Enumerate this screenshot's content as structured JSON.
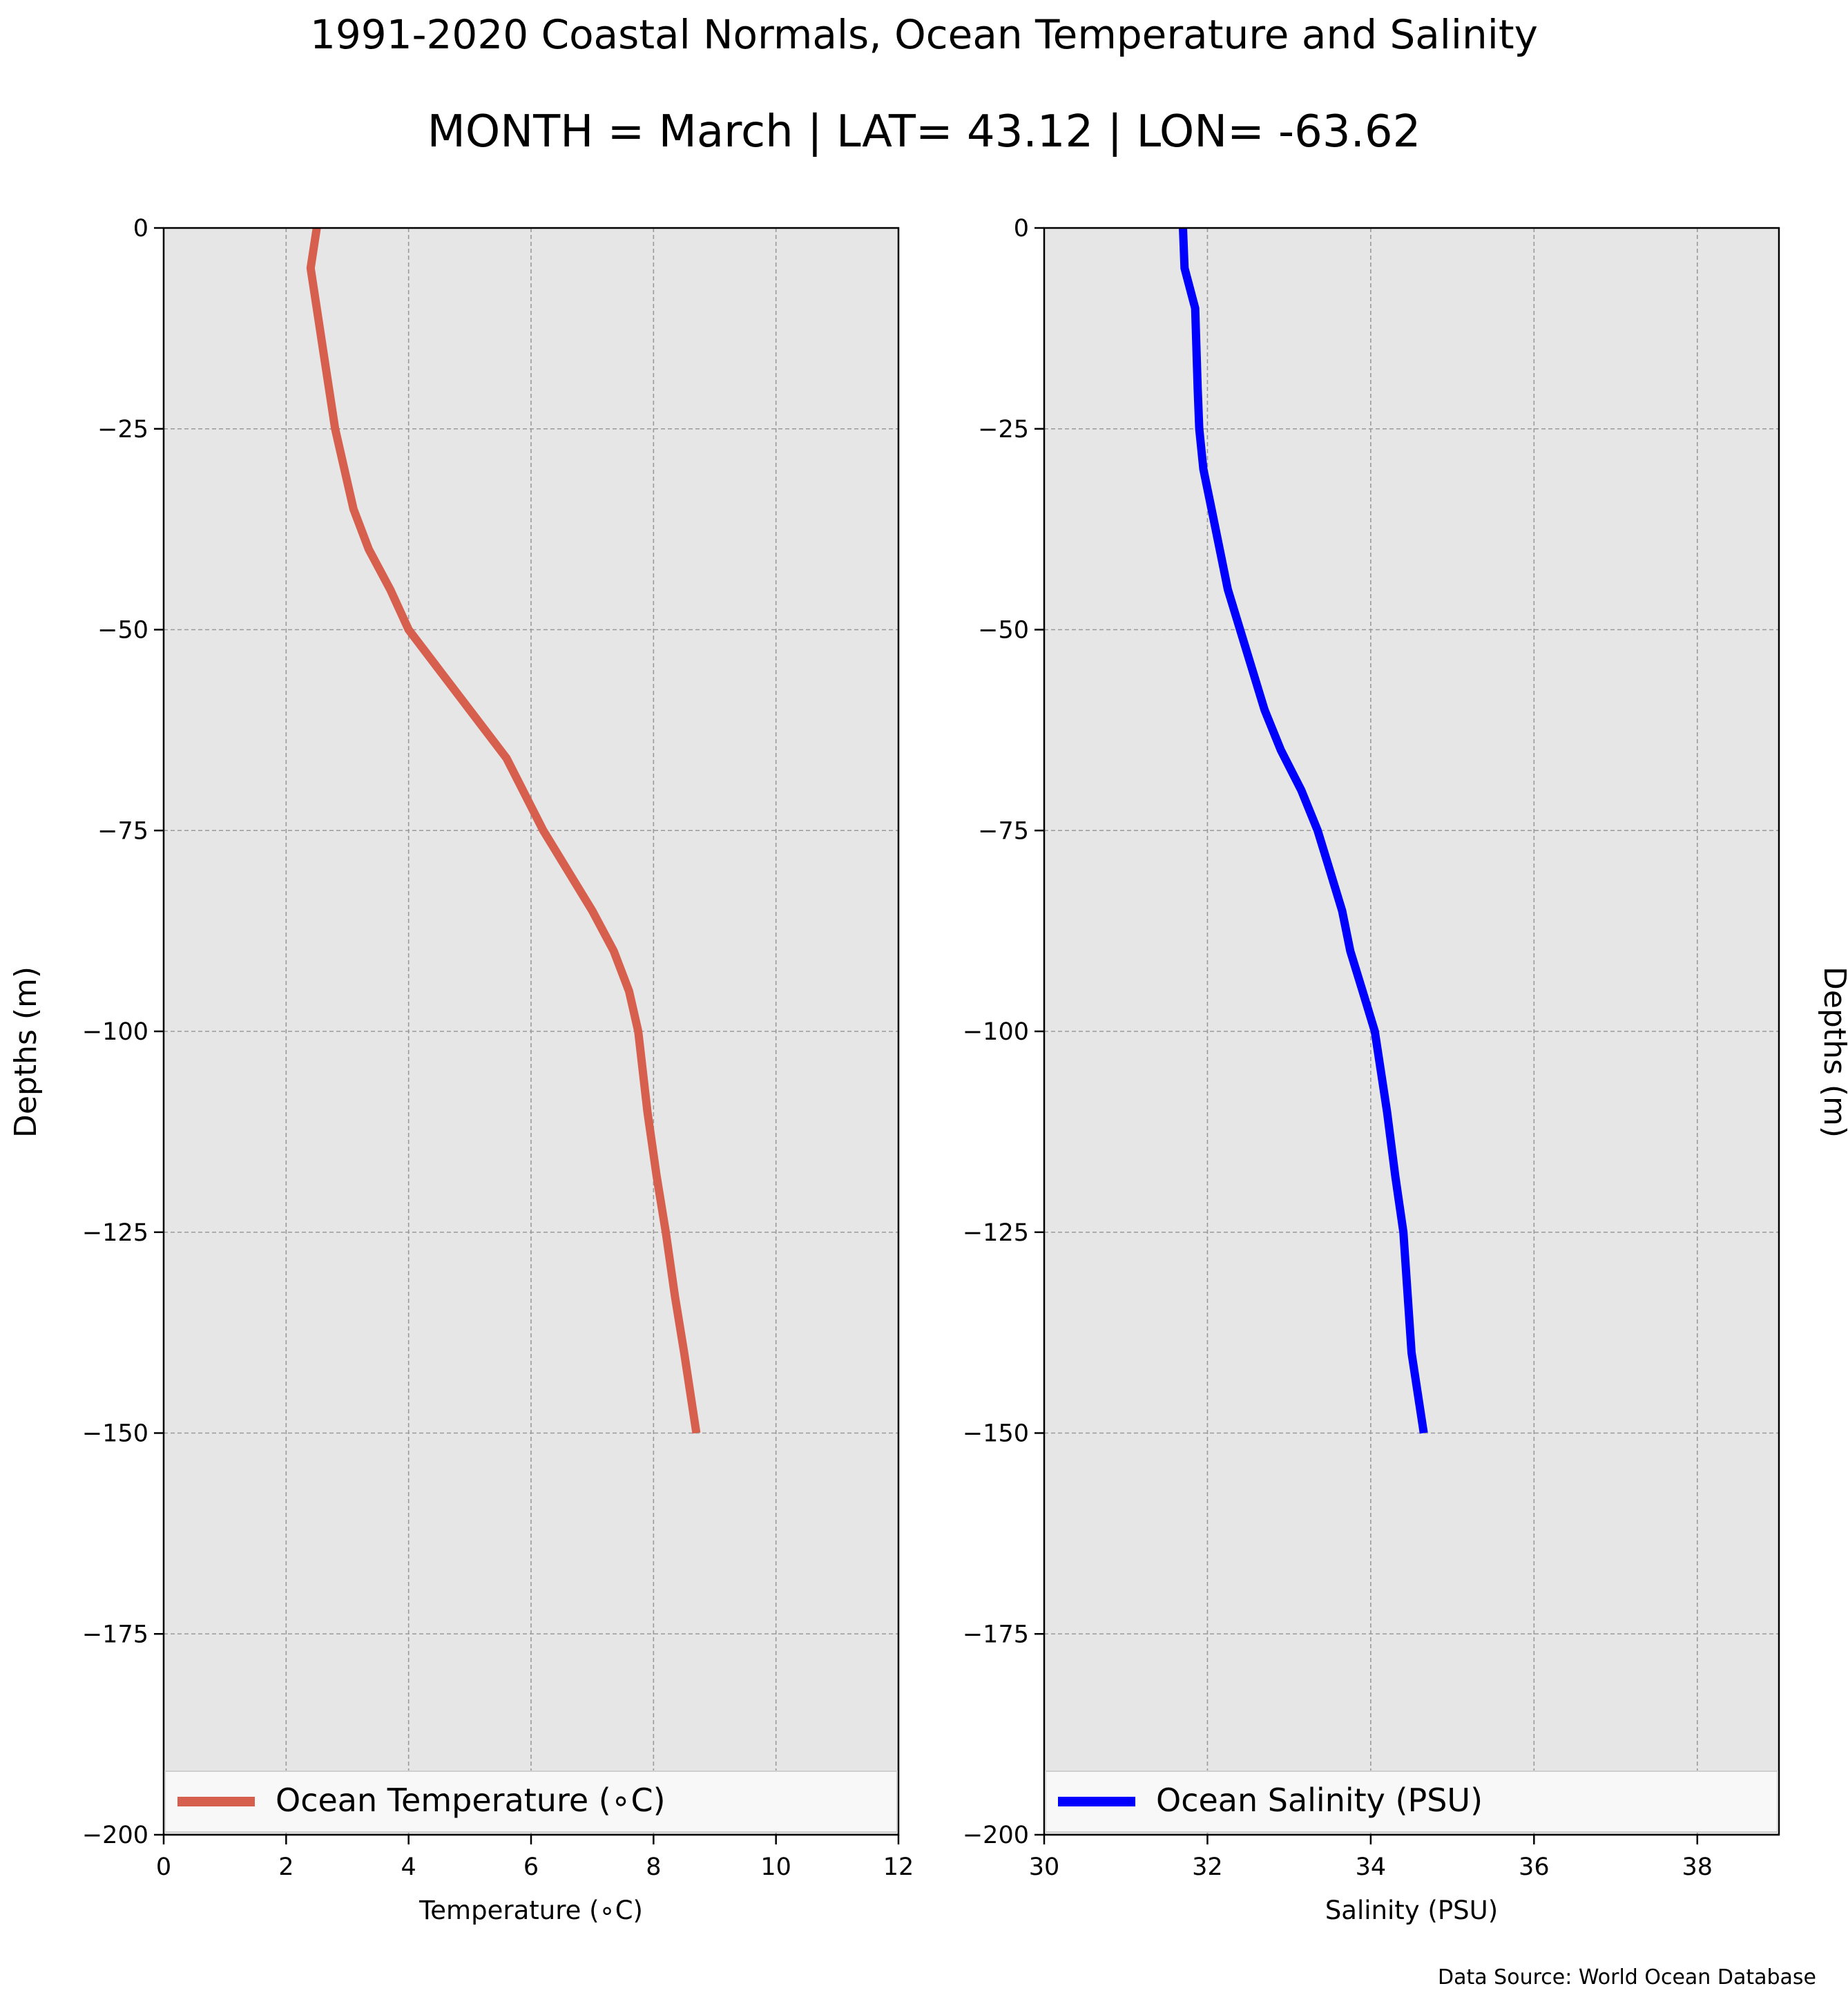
{
  "figure": {
    "title": "1991-2020 Coastal Normals, Ocean Temperature and Salinity",
    "subtitle": "MONTH = March | LAT= 43.12 | LON= -63.62",
    "source": "Data Source: World Ocean Database"
  },
  "colors": {
    "panel_bg": "#e6e6e6",
    "grid": "#9a9a9a",
    "temperature": "#d65f4e",
    "salinity": "#0000ff"
  },
  "chart_data": [
    {
      "type": "line",
      "xlabel": "Temperature (∘C)",
      "ylabel": "Depths (m)",
      "xlim": [
        0,
        12
      ],
      "ylim": [
        -200,
        0
      ],
      "xticks": [
        0,
        2,
        4,
        6,
        8,
        10,
        12
      ],
      "xtick_labels": [
        "0",
        "2",
        "4",
        "6",
        "8",
        "10",
        "12"
      ],
      "yticks": [
        0,
        -25,
        -50,
        -75,
        -100,
        -125,
        -150,
        -175,
        -200
      ],
      "ytick_labels": [
        "0",
        "−25",
        "−50",
        "−75",
        "−100",
        "−125",
        "−150",
        "−175",
        "−200"
      ],
      "grid": true,
      "legend_position": "lower-center",
      "series": [
        {
          "name": "Ocean Temperature (∘C)",
          "color": "#d65f4e",
          "x": [
            2.5,
            2.4,
            2.5,
            2.6,
            2.7,
            2.8,
            3.1,
            3.35,
            3.7,
            4.0,
            4.5,
            5.0,
            5.6,
            6.2,
            6.6,
            7.0,
            7.35,
            7.6,
            7.75,
            7.9,
            8.05,
            8.2,
            8.35,
            8.5,
            8.7
          ],
          "y": [
            0,
            -5,
            -10,
            -15,
            -20,
            -25,
            -35,
            -40,
            -45,
            -50,
            -55,
            -60,
            -66,
            -75,
            -80,
            -85,
            -90,
            -95,
            -100,
            -110,
            -118,
            -125,
            -133,
            -140,
            -150
          ]
        }
      ]
    },
    {
      "type": "line",
      "xlabel": "Salinity (PSU)",
      "ylabel": "Depths (m)",
      "xlim": [
        30,
        39
      ],
      "ylim": [
        -200,
        0
      ],
      "xticks": [
        30,
        32,
        34,
        36,
        38
      ],
      "xtick_labels": [
        "30",
        "32",
        "34",
        "36",
        "38"
      ],
      "yticks": [
        0,
        -25,
        -50,
        -75,
        -100,
        -125,
        -150,
        -175,
        -200
      ],
      "ytick_labels": [
        "0",
        "−25",
        "−50",
        "−75",
        "−100",
        "−125",
        "−150",
        "−175",
        "−200"
      ],
      "grid": true,
      "legend_position": "lower-center",
      "series": [
        {
          "name": "Ocean Salinity (PSU)",
          "color": "#0000ff",
          "x": [
            31.7,
            31.72,
            31.85,
            31.88,
            31.9,
            31.95,
            32.05,
            32.15,
            32.25,
            32.4,
            32.55,
            32.7,
            32.9,
            33.15,
            33.35,
            33.5,
            33.65,
            33.75,
            33.9,
            34.05,
            34.2,
            34.3,
            34.4,
            34.5,
            34.65
          ],
          "y": [
            0,
            -5,
            -10,
            -20,
            -25,
            -30,
            -35,
            -40,
            -45,
            -50,
            -55,
            -60,
            -65,
            -70,
            -75,
            -80,
            -85,
            -90,
            -95,
            -100,
            -110,
            -118,
            -125,
            -140,
            -150
          ]
        }
      ]
    }
  ]
}
